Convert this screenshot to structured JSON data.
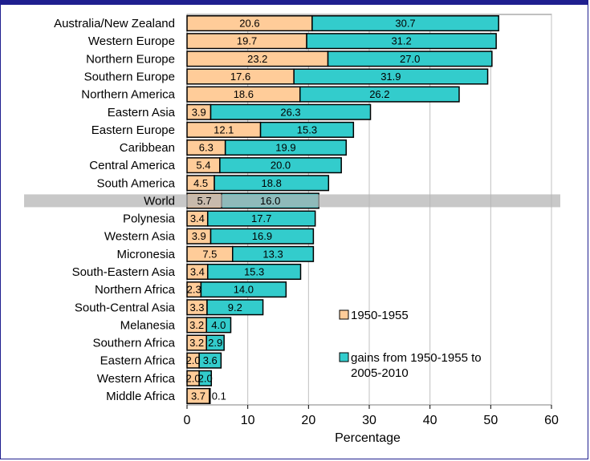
{
  "chart_data": {
    "type": "bar",
    "orientation": "horizontal",
    "stacked": true,
    "xlabel": "Percentage",
    "xlim": [
      0,
      60
    ],
    "xticks": [
      0,
      10,
      20,
      30,
      40,
      50,
      60
    ],
    "grid": "vertical",
    "legend_position": "right",
    "highlight_category": "World",
    "categories": [
      "Australia/New Zealand",
      "Western Europe",
      "Northern Europe",
      "Southern Europe",
      "Northern America",
      "Eastern Asia",
      "Eastern Europe",
      "Caribbean",
      "Central America",
      "South America",
      "World",
      "Polynesia",
      "Western Asia",
      "Micronesia",
      "South-Eastern Asia",
      "Northern Africa",
      "South-Central Asia",
      "Melanesia",
      "Southern Africa",
      "Eastern Africa",
      "Western Africa",
      "Middle Africa"
    ],
    "series": [
      {
        "name": "1950-1955",
        "color": "#ffcc99",
        "values": [
          20.6,
          19.7,
          23.2,
          17.6,
          18.6,
          3.9,
          12.1,
          6.3,
          5.4,
          4.5,
          5.7,
          3.4,
          3.9,
          7.5,
          3.4,
          2.3,
          3.3,
          3.2,
          3.2,
          2.0,
          2.0,
          3.7
        ]
      },
      {
        "name": "gains from 1950-1955 to 2005-2010",
        "color": "#33cccc",
        "values": [
          30.7,
          31.2,
          27.0,
          31.9,
          26.2,
          26.3,
          15.3,
          19.9,
          20.0,
          18.8,
          16.0,
          17.7,
          16.9,
          13.3,
          15.3,
          14.0,
          9.2,
          4.0,
          2.9,
          3.6,
          2.0,
          0.1
        ]
      }
    ],
    "value_labels": {
      "1950-1955": [
        "20.6",
        "19.7",
        "23.2",
        "17.6",
        "18.6",
        "3.9",
        "12.1",
        "6.3",
        "5.4",
        "4.5",
        "5.7",
        "3.4",
        "3.9",
        "7.5",
        "3.4",
        "2.3",
        "3.3",
        "3.2",
        "3.2",
        "2.0",
        "2.0",
        "3.7"
      ],
      "gains": [
        "30.7",
        "31.2",
        "27.0",
        "31.9",
        "26.2",
        "26.3",
        "15.3",
        "19.9",
        "20.0",
        "18.8",
        "16.0",
        "17.7",
        "16.9",
        "13.3",
        "15.3",
        "14.0",
        "9.2",
        "4.0",
        "2.9",
        "3.6",
        "2.0",
        "0.1"
      ]
    }
  },
  "colors": {
    "frame": "#1f1f8f",
    "base": "#ffcc99",
    "gain": "#33cccc",
    "highlight_band": "#b3b3b3",
    "grid": "#c0c0c0"
  }
}
